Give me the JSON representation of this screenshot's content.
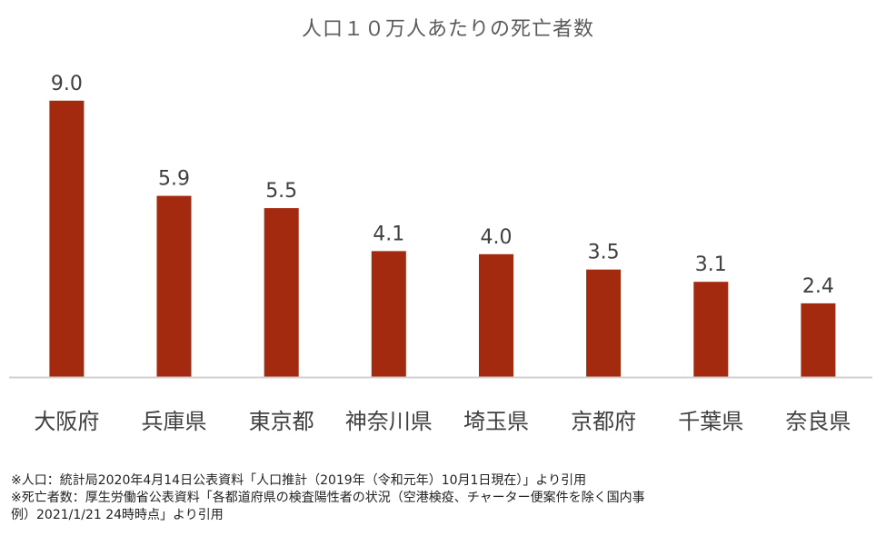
{
  "chart_data": {
    "type": "bar",
    "title": "人口１０万人あたりの死亡者数",
    "categories": [
      "大阪府",
      "兵庫県",
      "東京都",
      "神奈川県",
      "埼玉県",
      "京都府",
      "千葉県",
      "奈良県"
    ],
    "values": [
      9.0,
      5.9,
      5.5,
      4.1,
      4.0,
      3.5,
      3.1,
      2.4
    ],
    "value_labels": [
      "9.0",
      "5.9",
      "5.5",
      "4.1",
      "4.0",
      "3.5",
      "3.1",
      "2.4"
    ],
    "ylim": [
      0,
      10
    ],
    "grid": false,
    "bar_color": "#a32a0f",
    "axis_color": "#d0d0d0"
  },
  "footnotes": {
    "line1": "※人口：統計局2020年4月14日公表資料「人口推計（2019年（令和元年）10月1日現在）」より引用",
    "line2": "※死亡者数：厚生労働省公表資料「各都道府県の検査陽性者の状況（空港検疫、チャーター便案件を除く国内事",
    "line3": "例）2021/1/21 24時時点」より引用"
  }
}
